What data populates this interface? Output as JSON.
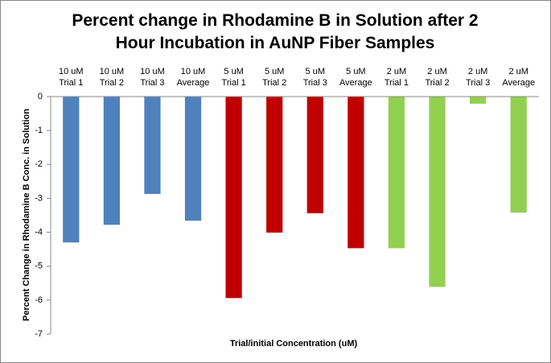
{
  "chart_data": {
    "type": "bar",
    "title": "Percent change in Rhodamine B in Solution after 2 Hour Incubation in AuNP Fiber Samples",
    "x_label": "Trial/initial  Concentration (uM)",
    "y_label": "Percent Change in Rhodamine  B Conc. in Solution",
    "categories": [
      [
        "10 uM",
        "Trial 1"
      ],
      [
        "10 uM",
        "Trial 2"
      ],
      [
        "10 uM",
        "Trial 3"
      ],
      [
        "10 uM",
        "Average"
      ],
      [
        "5 uM",
        "Trial 1"
      ],
      [
        "5 uM",
        "Trial 2"
      ],
      [
        "5 uM",
        "Trial 3"
      ],
      [
        "5 uM",
        "Average"
      ],
      [
        "2 uM",
        "Trial 1"
      ],
      [
        "2 uM",
        "Trial 2"
      ],
      [
        "2 uM",
        "Trial 3"
      ],
      [
        "2 uM",
        "Average"
      ]
    ],
    "values": [
      -4.3,
      -3.78,
      -2.87,
      -3.66,
      -5.94,
      -4.01,
      -3.44,
      -4.47,
      -4.47,
      -5.61,
      -0.21,
      -3.42
    ],
    "colors": [
      "#4f81bd",
      "#4f81bd",
      "#4f81bd",
      "#4f81bd",
      "#c00000",
      "#c00000",
      "#c00000",
      "#c00000",
      "#92d050",
      "#92d050",
      "#92d050",
      "#92d050"
    ],
    "ylim": [
      -7,
      0
    ],
    "yticks": [
      -7,
      -6,
      -5,
      -4,
      -3,
      -2,
      -1,
      0
    ],
    "grid": false
  }
}
